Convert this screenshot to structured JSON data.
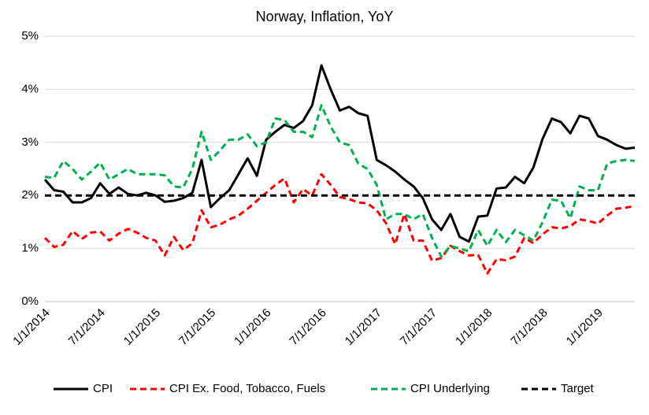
{
  "chart_data": {
    "type": "line",
    "title": "Norway, Inflation, YoY",
    "categories": [
      "1/1/2014",
      null,
      null,
      null,
      null,
      null,
      "7/1/2014",
      null,
      null,
      null,
      null,
      null,
      "1/1/2015",
      null,
      null,
      null,
      null,
      null,
      "7/1/2015",
      null,
      null,
      null,
      null,
      null,
      "1/1/2016",
      null,
      null,
      null,
      null,
      null,
      "7/1/2016",
      null,
      null,
      null,
      null,
      null,
      "1/1/2017",
      null,
      null,
      null,
      null,
      null,
      "7/1/2017",
      null,
      null,
      null,
      null,
      null,
      "1/1/2018",
      null,
      null,
      null,
      null,
      null,
      "7/1/2018",
      null,
      null,
      null,
      null,
      null,
      "1/1/2019",
      null,
      null,
      null,
      null
    ],
    "series": [
      {
        "name": "CPI",
        "color": "#000000",
        "dashed": false,
        "values": [
          2.3,
          2.1,
          2.07,
          1.87,
          1.87,
          1.95,
          2.23,
          2.03,
          2.15,
          2.03,
          2.0,
          2.05,
          2.0,
          1.88,
          1.9,
          1.95,
          2.05,
          2.67,
          1.78,
          1.95,
          2.1,
          2.4,
          2.7,
          2.37,
          3.05,
          3.2,
          3.33,
          3.27,
          3.4,
          3.7,
          4.45,
          4.0,
          3.6,
          3.67,
          3.55,
          3.5,
          2.67,
          2.57,
          2.45,
          2.3,
          2.17,
          1.95,
          1.55,
          1.35,
          1.65,
          1.22,
          1.13,
          1.6,
          1.62,
          2.13,
          2.15,
          2.35,
          2.23,
          2.53,
          3.07,
          3.45,
          3.38,
          3.17,
          3.5,
          3.45,
          3.12,
          3.05,
          2.95,
          2.88,
          2.9
        ]
      },
      {
        "name": "CPI Ex. Food, Tobacco, Fuels",
        "color": "#ff0000",
        "dashed": true,
        "values": [
          1.2,
          1.03,
          1.07,
          1.33,
          1.18,
          1.3,
          1.32,
          1.15,
          1.28,
          1.37,
          1.3,
          1.2,
          1.15,
          0.87,
          1.22,
          0.97,
          1.1,
          1.72,
          1.4,
          1.45,
          1.55,
          1.62,
          1.75,
          1.9,
          2.05,
          2.2,
          2.32,
          1.87,
          2.12,
          2.0,
          2.4,
          2.2,
          1.97,
          1.93,
          1.87,
          1.85,
          1.72,
          1.48,
          1.08,
          1.65,
          1.15,
          1.15,
          0.77,
          0.82,
          1.05,
          0.95,
          0.87,
          0.88,
          0.53,
          0.8,
          0.78,
          0.85,
          1.2,
          1.1,
          1.27,
          1.4,
          1.38,
          1.42,
          1.55,
          1.52,
          1.47,
          1.62,
          1.75,
          1.77,
          1.8
        ]
      },
      {
        "name": "CPI Underlying",
        "color": "#00b050",
        "dashed": true,
        "values": [
          2.35,
          2.33,
          2.65,
          2.5,
          2.3,
          2.45,
          2.62,
          2.3,
          2.4,
          2.5,
          2.4,
          2.4,
          2.4,
          2.38,
          2.17,
          2.15,
          2.5,
          3.2,
          2.67,
          2.85,
          3.05,
          3.05,
          3.15,
          2.93,
          3.0,
          3.45,
          3.42,
          3.2,
          3.2,
          3.1,
          3.7,
          3.3,
          3.0,
          2.95,
          2.6,
          2.5,
          2.2,
          1.55,
          1.65,
          1.65,
          1.55,
          1.65,
          1.2,
          0.85,
          1.05,
          1.0,
          0.95,
          1.35,
          1.05,
          1.35,
          1.12,
          1.35,
          1.25,
          1.15,
          1.5,
          1.92,
          1.9,
          1.57,
          2.17,
          2.1,
          2.1,
          2.6,
          2.65,
          2.67,
          2.65
        ]
      },
      {
        "name": "Target",
        "color": "#000000",
        "dashed": true,
        "values": [
          2,
          2,
          2,
          2,
          2,
          2,
          2,
          2,
          2,
          2,
          2,
          2,
          2,
          2,
          2,
          2,
          2,
          2,
          2,
          2,
          2,
          2,
          2,
          2,
          2,
          2,
          2,
          2,
          2,
          2,
          2,
          2,
          2,
          2,
          2,
          2,
          2,
          2,
          2,
          2,
          2,
          2,
          2,
          2,
          2,
          2,
          2,
          2,
          2,
          2,
          2,
          2,
          2,
          2,
          2,
          2,
          2,
          2,
          2,
          2,
          2,
          2,
          2,
          2,
          2
        ]
      }
    ],
    "ylim": [
      0,
      5
    ],
    "yticks": [
      {
        "value": 0,
        "label": "0%"
      },
      {
        "value": 1,
        "label": "1%"
      },
      {
        "value": 2,
        "label": "2%"
      },
      {
        "value": 3,
        "label": "3%"
      },
      {
        "value": 4,
        "label": "4%"
      },
      {
        "value": 5,
        "label": "5%"
      }
    ],
    "grid": true,
    "legend": "bottom"
  }
}
